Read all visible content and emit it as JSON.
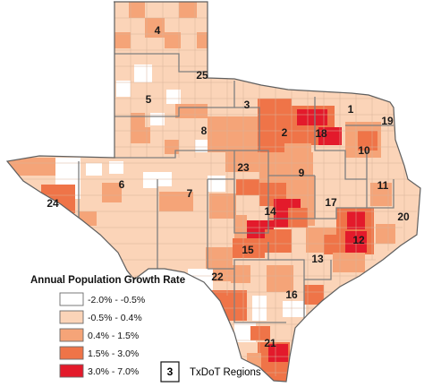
{
  "legend": {
    "title": "Annual Population Growth Rate",
    "classes": [
      {
        "range": "-2.0% - -0.5%",
        "color": "#ffffff"
      },
      {
        "range": "-0.5% - 0.4%",
        "color": "#fbd4b8"
      },
      {
        "range": "0.4% - 1.5%",
        "color": "#f5a478"
      },
      {
        "range": "1.5% - 3.0%",
        "color": "#ef7448"
      },
      {
        "range": "3.0% - 7.0%",
        "color": "#e31a2b"
      }
    ],
    "regions_key": {
      "sample_number": "3",
      "label": "TxDoT Regions"
    }
  },
  "regions": [
    {
      "number": "1"
    },
    {
      "number": "2"
    },
    {
      "number": "3"
    },
    {
      "number": "4"
    },
    {
      "number": "5"
    },
    {
      "number": "6"
    },
    {
      "number": "7"
    },
    {
      "number": "8"
    },
    {
      "number": "9"
    },
    {
      "number": "10"
    },
    {
      "number": "11"
    },
    {
      "number": "12"
    },
    {
      "number": "13"
    },
    {
      "number": "14"
    },
    {
      "number": "15"
    },
    {
      "number": "16"
    },
    {
      "number": "17"
    },
    {
      "number": "18"
    },
    {
      "number": "19"
    },
    {
      "number": "20"
    },
    {
      "number": "21"
    },
    {
      "number": "22"
    },
    {
      "number": "23"
    },
    {
      "number": "24"
    },
    {
      "number": "25"
    }
  ]
}
